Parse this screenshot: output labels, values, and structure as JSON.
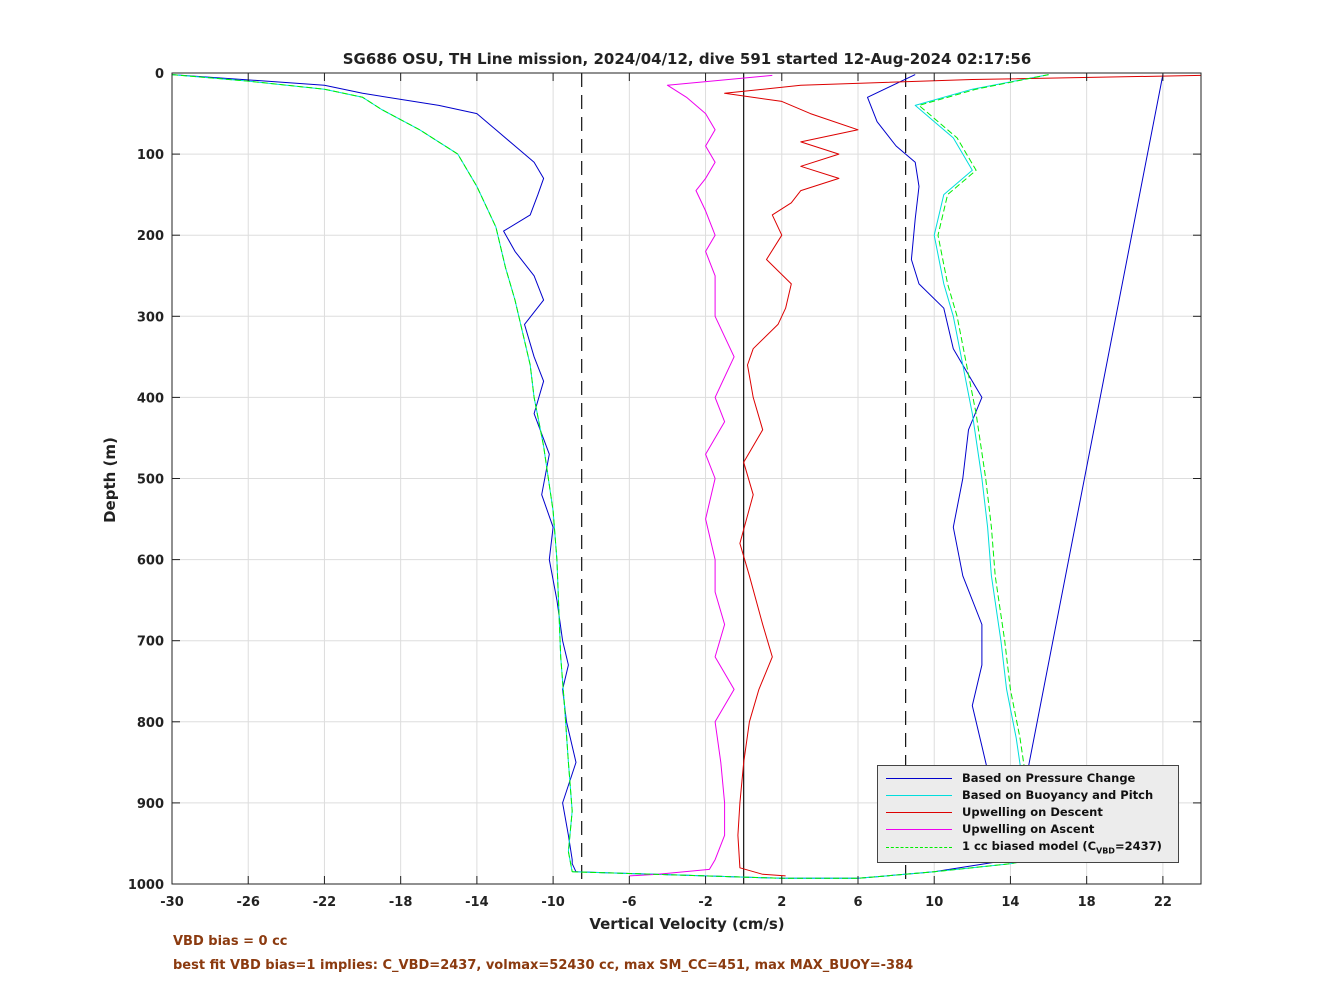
{
  "chart_data": {
    "type": "line",
    "title": "SG686 OSU, TH Line mission, 2024/04/12, dive 591 started 12-Aug-2024 02:17:56",
    "xlabel": "Vertical Velocity (cm/s)",
    "ylabel": "Depth (m)",
    "xlim": [
      -30,
      24
    ],
    "ylim": [
      0,
      1000
    ],
    "y_reversed": true,
    "x_ticks": [
      -30,
      -26,
      -22,
      -18,
      -14,
      -10,
      -6,
      -2,
      2,
      6,
      10,
      14,
      18,
      22
    ],
    "y_ticks": [
      0,
      100,
      200,
      300,
      400,
      500,
      600,
      700,
      800,
      900,
      1000
    ],
    "grid": true,
    "legend_placement": "bottom-right",
    "reference_lines": [
      {
        "x": -8.5,
        "style": "dashed"
      },
      {
        "x": 0,
        "style": "solid"
      },
      {
        "x": 8.5,
        "style": "dashed"
      }
    ],
    "series": [
      {
        "name": "Based on Pressure Change",
        "color": "#0000cc",
        "segments": [
          {
            "x": [
              -30,
              -22,
              -20,
              -16,
              -14,
              -13,
              -12,
              -11,
              -10.5,
              -10.8,
              -11.2,
              -12.6,
              -12,
              -11,
              -10.5,
              -11.5,
              -11,
              -10.5,
              -11,
              -10.2,
              -10.6,
              -10,
              -10.2,
              -9.8,
              -9.5,
              -9.2,
              -9.5,
              -9.3,
              -8.8,
              -9.5,
              -9.2,
              -9,
              -9,
              -8.8
            ],
            "y": [
              2,
              15,
              25,
              40,
              50,
              70,
              90,
              110,
              130,
              150,
              175,
              195,
              220,
              250,
              280,
              310,
              350,
              380,
              420,
              470,
              520,
              560,
              600,
              650,
              700,
              730,
              760,
              800,
              850,
              900,
              940,
              970,
              975,
              985
            ]
          },
          {
            "x": [
              -8.8,
              -6,
              -2,
              2,
              6,
              10,
              14,
              22
            ],
            "y": [
              985,
              987,
              990,
              993,
              993,
              985,
              970,
              2
            ]
          },
          {
            "x": [
              9,
              6.5,
              7,
              8,
              9,
              9.2,
              9,
              8.8,
              9.2,
              10.5,
              11,
              12,
              12.5,
              11.8,
              11.5,
              11,
              11.5,
              12.5,
              12.5,
              12,
              12.5,
              13,
              13.5,
              14
            ],
            "y": [
              2,
              30,
              60,
              90,
              110,
              140,
              180,
              230,
              260,
              290,
              340,
              380,
              400,
              440,
              500,
              560,
              620,
              680,
              730,
              780,
              830,
              880,
              940,
              970
            ]
          }
        ]
      },
      {
        "name": "Based on Buoyancy and Pitch",
        "color": "#00dddd",
        "segments": [
          {
            "x": [
              -30,
              -26,
              -22,
              -20,
              -19,
              -17,
              -15,
              -14,
              -13,
              -12.5,
              -12,
              -11.5,
              -11.2,
              -11,
              -10.5,
              -10,
              -9.8,
              -9.7,
              -9.6,
              -9.4,
              -9.2,
              -9,
              -9.2,
              -9
            ],
            "y": [
              2,
              10,
              20,
              30,
              45,
              70,
              100,
              140,
              190,
              240,
              280,
              330,
              360,
              400,
              460,
              540,
              600,
              660,
              720,
              780,
              850,
              910,
              960,
              985
            ]
          },
          {
            "x": [
              -9,
              -6,
              -2,
              2,
              6,
              10,
              14,
              15
            ],
            "y": [
              985,
              987,
              990,
              993,
              993,
              985,
              975,
              970
            ]
          },
          {
            "x": [
              15,
              14.8,
              14.3,
              13.8,
              13.5,
              13,
              12.8,
              12.5,
              12,
              11.5,
              11,
              10.5,
              10,
              10.5,
              12,
              11,
              9,
              12,
              16
            ],
            "y": [
              970,
              900,
              820,
              760,
              700,
              620,
              560,
              500,
              420,
              360,
              300,
              260,
              200,
              150,
              120,
              80,
              40,
              20,
              2
            ]
          }
        ]
      },
      {
        "name": "Upwelling on Descent",
        "color": "#dd0000",
        "segments": [
          {
            "x": [
              24,
              12,
              3,
              -1,
              2,
              3.5,
              6,
              3,
              5,
              3,
              5,
              3,
              2.5,
              1.5,
              2,
              1.2,
              2.5,
              2.2,
              1.8,
              0.5,
              0.2,
              0.5,
              1,
              0,
              0.5,
              -0.2,
              0.3,
              1,
              1.5,
              0.8,
              0.3,
              0,
              -0.2,
              -0.3,
              -0.2,
              1,
              2.2
            ],
            "y": [
              3,
              8,
              15,
              25,
              35,
              50,
              70,
              85,
              100,
              115,
              130,
              145,
              160,
              175,
              200,
              230,
              260,
              290,
              310,
              340,
              360,
              400,
              440,
              480,
              520,
              580,
              620,
              680,
              720,
              760,
              800,
              850,
              900,
              940,
              980,
              988,
              990
            ]
          }
        ]
      },
      {
        "name": "Upwelling on Ascent",
        "color": "#ee00ee",
        "segments": [
          {
            "x": [
              1.5,
              -4,
              -3,
              -2,
              -1.5,
              -2,
              -1.5,
              -2,
              -2.5,
              -2,
              -1.5,
              -2,
              -1.5,
              -1.5,
              -0.5,
              -1.5,
              -1,
              -2,
              -1.5,
              -2,
              -1.5,
              -1.5,
              -1,
              -1.5,
              -0.5,
              -1.5,
              -1.2,
              -1,
              -1,
              -1.5,
              -1.8,
              -4.5,
              -6
            ],
            "y": [
              3,
              15,
              30,
              50,
              70,
              90,
              110,
              130,
              145,
              170,
              200,
              220,
              250,
              300,
              350,
              400,
              430,
              470,
              500,
              550,
              600,
              640,
              680,
              720,
              760,
              800,
              850,
              900,
              940,
              970,
              982,
              988,
              990
            ]
          }
        ]
      },
      {
        "name": "1 cc biased model (C_VBD=2437)",
        "color": "#00ee00",
        "dashed": true,
        "segments": [
          {
            "x": [
              -30,
              -26,
              -22,
              -20,
              -19,
              -17,
              -15,
              -14,
              -13,
              -12.5,
              -12,
              -11.5,
              -11.2,
              -11,
              -10.5,
              -10,
              -9.8,
              -9.7,
              -9.6,
              -9.4,
              -9.2,
              -9,
              -9.2,
              -9
            ],
            "y": [
              2,
              10,
              20,
              30,
              45,
              70,
              100,
              140,
              190,
              240,
              280,
              330,
              360,
              400,
              460,
              540,
              600,
              660,
              720,
              780,
              850,
              910,
              960,
              985
            ]
          },
          {
            "x": [
              -9,
              -6,
              -2,
              2,
              6,
              10,
              14,
              15.2
            ],
            "y": [
              985,
              987,
              990,
              993,
              993,
              985,
              975,
              970
            ]
          },
          {
            "x": [
              15.2,
              15,
              14.5,
              14,
              13.7,
              13.2,
              13,
              12.7,
              12.2,
              11.7,
              11.2,
              10.7,
              10.2,
              10.7,
              12.2,
              11.2,
              9.2,
              12.2,
              16
            ],
            "y": [
              970,
              900,
              820,
              760,
              700,
              620,
              560,
              500,
              420,
              360,
              300,
              260,
              200,
              150,
              120,
              80,
              40,
              20,
              2
            ]
          }
        ]
      }
    ]
  },
  "legend": {
    "entries": [
      {
        "label": "Based on Pressure Change",
        "color": "#0000cc"
      },
      {
        "label": "Based on Buoyancy and Pitch",
        "color": "#00dddd"
      },
      {
        "label": "Upwelling on Descent",
        "color": "#dd0000"
      },
      {
        "label": "Upwelling on Ascent",
        "color": "#ee00ee"
      },
      {
        "label_main": "1 cc biased model (C",
        "label_sub": "VBD",
        "label_end": "=2437)",
        "color": "#00ee00"
      }
    ]
  },
  "notes": {
    "line1": "VBD bias = 0 cc",
    "line2": "best fit VBD bias=1 implies: C_VBD=2437, volmax=52430 cc, max SM_CC=451, max MAX_BUOY=-384"
  },
  "colors": {
    "note_text": "#8b3a0f",
    "grid": "#dddddd",
    "axes": "#222222"
  }
}
